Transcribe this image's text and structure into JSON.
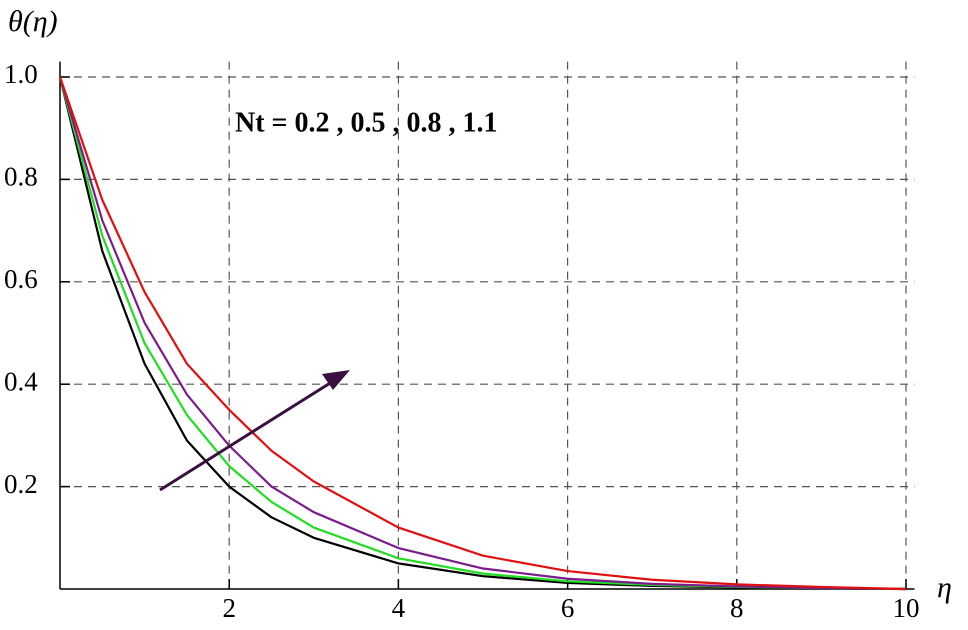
{
  "chart_data": {
    "type": "line",
    "annotation": "Nt = 0.2 , 0.5 , 0.8 , 1.1",
    "y_label": "θ(η)",
    "x_label": "η",
    "x": [
      0,
      0.5,
      1,
      1.5,
      2,
      2.5,
      3,
      4,
      5,
      6,
      7,
      8,
      9,
      10
    ],
    "series": [
      {
        "color": "#000000",
        "values": [
          1,
          0.66,
          0.44,
          0.29,
          0.2,
          0.14,
          0.1,
          0.05,
          0.025,
          0.012,
          0.006,
          0.003,
          0.001,
          0
        ]
      },
      {
        "color": "#22dd22",
        "values": [
          1,
          0.69,
          0.48,
          0.34,
          0.24,
          0.17,
          0.12,
          0.06,
          0.03,
          0.015,
          0.008,
          0.004,
          0.002,
          0
        ]
      },
      {
        "color": "#7b1c8c",
        "values": [
          1,
          0.72,
          0.52,
          0.38,
          0.28,
          0.2,
          0.15,
          0.08,
          0.04,
          0.02,
          0.01,
          0.005,
          0.002,
          0
        ]
      },
      {
        "color": "#e01010",
        "values": [
          1,
          0.76,
          0.58,
          0.44,
          0.35,
          0.27,
          0.21,
          0.12,
          0.065,
          0.035,
          0.018,
          0.009,
          0.004,
          0
        ]
      }
    ],
    "xlim": [
      0,
      10.1
    ],
    "ylim": [
      0,
      1.03
    ],
    "xticks": [
      2,
      4,
      6,
      8,
      10
    ],
    "yticks": [
      0.2,
      0.4,
      0.6,
      0.8,
      {
        "value": 1,
        "label": "1.0"
      }
    ],
    "grid": true
  }
}
